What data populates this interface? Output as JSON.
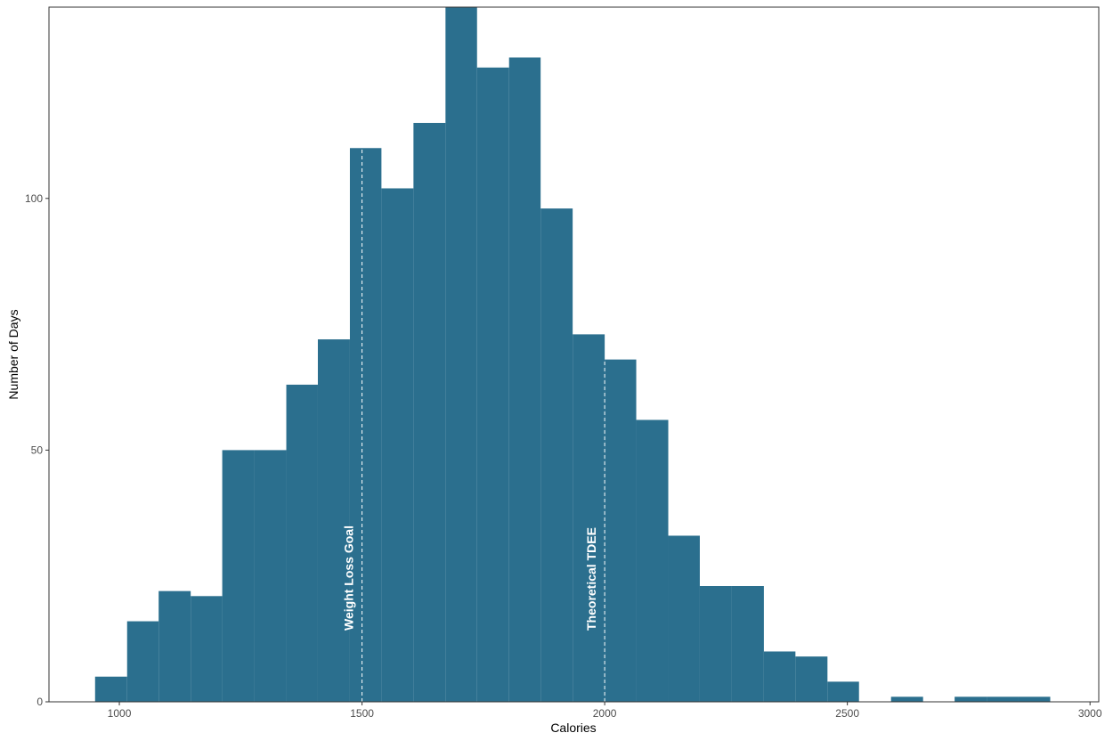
{
  "chart_data": {
    "type": "histogram",
    "x_label": "Calories",
    "y_label": "Number of Days",
    "bins": [
      950,
      1016,
      1081,
      1147,
      1212,
      1278,
      1344,
      1409,
      1475,
      1540,
      1606,
      1672,
      1737,
      1803,
      1868,
      1934,
      2000,
      2065,
      2131,
      2196,
      2262,
      2328,
      2393,
      2459,
      2524,
      2590,
      2656,
      2721,
      2787,
      2852,
      2918
    ],
    "values": [
      5,
      16,
      22,
      21,
      50,
      50,
      63,
      72,
      110,
      102,
      115,
      138,
      126,
      128,
      98,
      73,
      68,
      56,
      33,
      23,
      23,
      10,
      9,
      4,
      0,
      1,
      0,
      1,
      1,
      1
    ],
    "color": "#2b6f8e",
    "xlim": [
      855,
      3018
    ],
    "xticks": [
      1000,
      1500,
      2000,
      2500,
      3000
    ],
    "ylim": [
      0,
      138
    ],
    "yticks": [
      0,
      50,
      100
    ],
    "grid": false,
    "annotations": [
      {
        "x": 1500,
        "text": "Weight Loss Goal"
      },
      {
        "x": 2000,
        "text": "Theoretical TDEE"
      }
    ]
  }
}
